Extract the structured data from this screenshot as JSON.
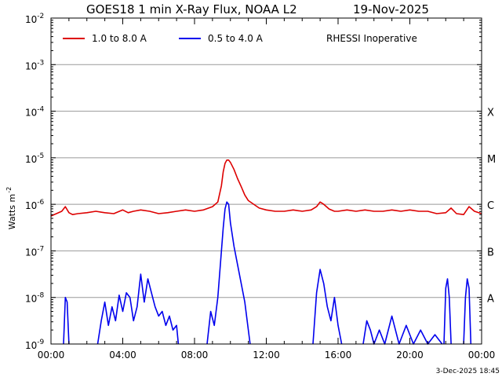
{
  "chart_data": {
    "type": "line",
    "title": "GOES18 1 min X-Ray Flux, NOAA L2",
    "date": "19-Nov-2025",
    "ylabel_base": "Watts m",
    "ylabel_exp": "-2",
    "y_scale": "log",
    "ylim_exp": [
      -9,
      -2
    ],
    "grid": true,
    "legend_placement": "top",
    "y_ticks": [
      {
        "base": "10",
        "exp": "-2"
      },
      {
        "base": "10",
        "exp": "-3"
      },
      {
        "base": "10",
        "exp": "-4"
      },
      {
        "base": "10",
        "exp": "-5"
      },
      {
        "base": "10",
        "exp": "-6"
      },
      {
        "base": "10",
        "exp": "-7"
      },
      {
        "base": "10",
        "exp": "-8"
      },
      {
        "base": "10",
        "exp": "-9"
      }
    ],
    "x_ticks": [
      "00:00",
      "04:00",
      "08:00",
      "12:00",
      "16:00",
      "20:00",
      "00:00"
    ],
    "xlim_hours": [
      0,
      24
    ],
    "flare_classes": [
      {
        "label": "X",
        "log": -4
      },
      {
        "label": "M",
        "log": -5
      },
      {
        "label": "C",
        "log": -6
      },
      {
        "label": "B",
        "log": -7
      },
      {
        "label": "A",
        "log": -8
      }
    ],
    "note": "RHESSI Inoperative",
    "footer": "3-Dec-2025 18:45",
    "series": [
      {
        "name": "1.0 to 8.0 A",
        "color": "#dd0000",
        "x_hours": [
          0,
          0.3,
          0.6,
          0.8,
          1.0,
          1.2,
          1.5,
          2.0,
          2.5,
          3.0,
          3.5,
          4.0,
          4.3,
          4.6,
          5.0,
          5.5,
          6.0,
          6.5,
          7.0,
          7.5,
          8.0,
          8.5,
          9.0,
          9.3,
          9.5,
          9.6,
          9.7,
          9.8,
          9.9,
          10.0,
          10.2,
          10.4,
          10.6,
          10.8,
          11.0,
          11.3,
          11.6,
          12.0,
          12.5,
          13.0,
          13.5,
          14.0,
          14.5,
          14.8,
          15.0,
          15.2,
          15.5,
          15.8,
          16.0,
          16.5,
          17.0,
          17.5,
          18.0,
          18.5,
          19.0,
          19.5,
          20.0,
          20.5,
          21.0,
          21.5,
          22.0,
          22.3,
          22.6,
          23.0,
          23.3,
          23.6,
          24.0
        ],
        "log_y": [
          -6.25,
          -6.2,
          -6.15,
          -6.05,
          -6.18,
          -6.22,
          -6.2,
          -6.18,
          -6.15,
          -6.18,
          -6.2,
          -6.12,
          -6.18,
          -6.15,
          -6.12,
          -6.15,
          -6.2,
          -6.18,
          -6.15,
          -6.12,
          -6.15,
          -6.12,
          -6.05,
          -5.95,
          -5.6,
          -5.3,
          -5.12,
          -5.05,
          -5.05,
          -5.1,
          -5.25,
          -5.45,
          -5.62,
          -5.8,
          -5.92,
          -6.0,
          -6.08,
          -6.12,
          -6.15,
          -6.15,
          -6.12,
          -6.15,
          -6.12,
          -6.05,
          -5.95,
          -6.0,
          -6.1,
          -6.15,
          -6.15,
          -6.12,
          -6.15,
          -6.12,
          -6.15,
          -6.15,
          -6.12,
          -6.15,
          -6.12,
          -6.15,
          -6.15,
          -6.2,
          -6.18,
          -6.08,
          -6.2,
          -6.22,
          -6.05,
          -6.15,
          -6.2
        ]
      },
      {
        "name": "0.5 to 4.0 A",
        "color": "#0000ee",
        "segments": [
          {
            "x_hours": [
              0.7,
              0.8,
              0.9,
              1.0
            ],
            "log_y": [
              -9.0,
              -8.0,
              -8.1,
              -9.0
            ]
          },
          {
            "x_hours": [
              2.6,
              2.8,
              3.0,
              3.2,
              3.4,
              3.6,
              3.8,
              4.0,
              4.2,
              4.4,
              4.6,
              4.8,
              5.0,
              5.2,
              5.4,
              5.6,
              5.8,
              6.0,
              6.2,
              6.4,
              6.6,
              6.8,
              7.0,
              7.1
            ],
            "log_y": [
              -9.0,
              -8.5,
              -8.1,
              -8.6,
              -8.2,
              -8.5,
              -7.95,
              -8.3,
              -7.9,
              -8.0,
              -8.5,
              -8.2,
              -7.5,
              -8.1,
              -7.6,
              -7.9,
              -8.2,
              -8.4,
              -8.3,
              -8.6,
              -8.4,
              -8.7,
              -8.6,
              -9.0
            ]
          },
          {
            "x_hours": [
              8.7,
              8.9,
              9.1,
              9.3,
              9.5,
              9.6,
              9.7,
              9.8,
              9.9,
              10.0,
              10.2,
              10.4,
              10.6,
              10.8,
              11.0,
              11.1
            ],
            "log_y": [
              -9.0,
              -8.3,
              -8.6,
              -8.0,
              -7.0,
              -6.5,
              -6.1,
              -5.95,
              -6.0,
              -6.4,
              -6.9,
              -7.3,
              -7.7,
              -8.1,
              -8.7,
              -9.0
            ]
          },
          {
            "x_hours": [
              14.6,
              14.8,
              15.0,
              15.2,
              15.4,
              15.6,
              15.8,
              16.0,
              16.2
            ],
            "log_y": [
              -9.0,
              -7.9,
              -7.4,
              -7.7,
              -8.2,
              -8.5,
              -8.0,
              -8.6,
              -9.0
            ]
          },
          {
            "x_hours": [
              17.4,
              17.6,
              17.8,
              18.0,
              18.3,
              18.6,
              19.0,
              19.4,
              19.8,
              20.2,
              20.6,
              21.0,
              21.4,
              21.8
            ],
            "log_y": [
              -9.0,
              -8.5,
              -8.7,
              -9.0,
              -8.7,
              -9.0,
              -8.4,
              -9.0,
              -8.6,
              -9.0,
              -8.7,
              -9.0,
              -8.8,
              -9.0
            ]
          },
          {
            "x_hours": [
              21.9,
              22.0,
              22.1,
              22.2,
              22.3
            ],
            "log_y": [
              -9.0,
              -7.8,
              -7.6,
              -8.0,
              -9.0
            ]
          },
          {
            "x_hours": [
              23.0,
              23.1,
              23.2,
              23.3,
              23.4
            ],
            "log_y": [
              -9.0,
              -8.0,
              -7.6,
              -7.8,
              -9.0
            ]
          }
        ]
      }
    ]
  }
}
